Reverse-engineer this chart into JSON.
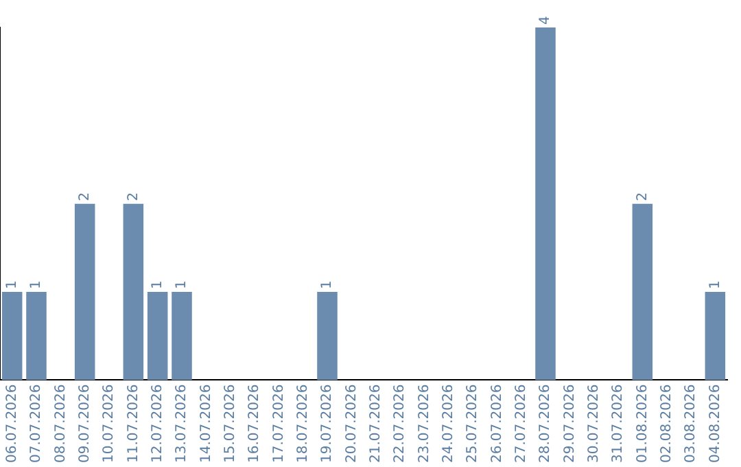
{
  "chart_data": {
    "type": "bar",
    "categories": [
      "06.07.2026",
      "07.07.2026",
      "08.07.2026",
      "09.07.2026",
      "10.07.2026",
      "11.07.2026",
      "12.07.2026",
      "13.07.2026",
      "14.07.2026",
      "15.07.2026",
      "16.07.2026",
      "17.07.2026",
      "18.07.2026",
      "19.07.2026",
      "20.07.2026",
      "21.07.2026",
      "22.07.2026",
      "23.07.2026",
      "24.07.2026",
      "25.07.2026",
      "26.07.2026",
      "27.07.2026",
      "28.07.2026",
      "29.07.2026",
      "30.07.2026",
      "31.07.2026",
      "01.08.2026",
      "02.08.2026",
      "03.08.2026",
      "04.08.2026"
    ],
    "values": [
      1,
      1,
      null,
      2,
      null,
      2,
      1,
      1,
      null,
      null,
      null,
      null,
      null,
      1,
      null,
      null,
      null,
      null,
      null,
      null,
      null,
      null,
      4,
      null,
      null,
      null,
      2,
      null,
      null,
      1
    ],
    "color": "#6b8cae",
    "data_labels": true,
    "tick_labels": "x",
    "grid": false,
    "legend": false
  }
}
